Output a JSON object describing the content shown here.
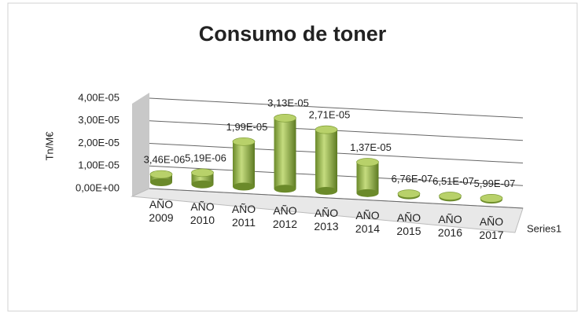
{
  "chart_data": {
    "type": "bar3d",
    "title": "Consumo de toner",
    "y_label": "Tn/M€",
    "categories": [
      "AÑO 2009",
      "AÑO 2010",
      "AÑO 2011",
      "AÑO 2012",
      "AÑO 2013",
      "AÑO 2014",
      "AÑO 2015",
      "AÑO 2016",
      "AÑO 2017"
    ],
    "series": [
      {
        "name": "Series1",
        "color": "#9bbb59",
        "values": [
          3.46e-06,
          5.19e-06,
          1.99e-05,
          3.13e-05,
          2.71e-05,
          1.37e-05,
          6.76e-07,
          6.51e-07,
          5.99e-07
        ],
        "value_labels": [
          "3,46E-06",
          "5,19E-06",
          "1,99E-05",
          "3,13E-05",
          "2,71E-05",
          "1,37E-05",
          "6,76E-07",
          "6,51E-07",
          "5,99E-07"
        ]
      }
    ],
    "ylim": [
      0,
      4e-05
    ],
    "yticks": [
      {
        "value": 0,
        "label": "0,00E+00"
      },
      {
        "value": 1e-05,
        "label": "1,00E-05"
      },
      {
        "value": 2e-05,
        "label": "2,00E-05"
      },
      {
        "value": 3e-05,
        "label": "3,00E-05"
      },
      {
        "value": 4e-05,
        "label": "4,00E-05"
      }
    ],
    "grid": true
  }
}
